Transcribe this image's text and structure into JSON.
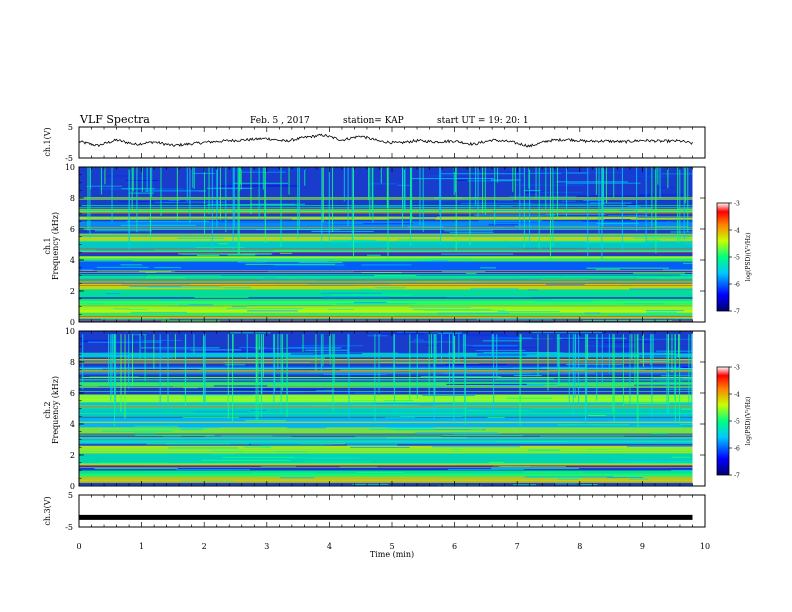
{
  "header": {
    "title": "VLF Spectra",
    "date": "Feb. 5 , 2017",
    "station": "station= KAP",
    "start": "start  UT =   19: 20: 1"
  },
  "colors": {
    "spectrogram_base": "#1a3ccc",
    "trace": "#000000"
  },
  "chart_data": [
    {
      "type": "line",
      "name": "ch1-waveform",
      "ylabel": "ch.1(V)",
      "ylim": [
        -5,
        5
      ],
      "yticks": [
        "5",
        "-5"
      ],
      "xlim": [
        0,
        10
      ],
      "series": [
        {
          "x": [
            0,
            0.3,
            0.6,
            0.9,
            1.2,
            1.5,
            1.8,
            2.1,
            2.4,
            2.7,
            3.0,
            3.3,
            3.6,
            3.9,
            4.2,
            4.5,
            4.8,
            5.1,
            5.4,
            5.7,
            6.0,
            6.3,
            6.6,
            6.9,
            7.2,
            7.5,
            7.8,
            8.1,
            8.4,
            8.7,
            9.0,
            9.3,
            9.6,
            9.8
          ],
          "values": [
            0.3,
            -1.0,
            0.8,
            -0.6,
            0.2,
            -1.0,
            -0.4,
            0.2,
            0.6,
            0.9,
            1.3,
            0.4,
            1.6,
            2.4,
            0.8,
            2.1,
            0.4,
            -0.2,
            0.6,
            0.2,
            0.5,
            -0.6,
            0.8,
            0.2,
            -1.2,
            0.6,
            1.0,
            0.4,
            0.5,
            0.2,
            0.7,
            0.4,
            0.5,
            -0.3
          ]
        }
      ]
    },
    {
      "type": "heatmap",
      "name": "ch1-spectrogram",
      "ylabel": "ch.1\nFrequency (kHz)",
      "ylim": [
        0,
        10
      ],
      "yticks": [
        "0",
        "2",
        "4",
        "6",
        "8",
        "10"
      ],
      "xlim": [
        0,
        10
      ],
      "colorbar": {
        "label": "log(PSD)(V²/Hz)",
        "ticks": [
          "-3",
          "-4",
          "-5",
          "-6",
          "-7"
        ],
        "range": [
          -7,
          -3
        ]
      }
    },
    {
      "type": "heatmap",
      "name": "ch2-spectrogram",
      "ylabel": "ch.2\nFrequency (kHz)",
      "ylim": [
        0,
        10
      ],
      "yticks": [
        "0",
        "2",
        "4",
        "6",
        "8",
        "10"
      ],
      "xlim": [
        0,
        10
      ],
      "colorbar": {
        "label": "log(PSD)(V²/Hz)",
        "ticks": [
          "-3",
          "-4",
          "-5",
          "-6",
          "-7"
        ],
        "range": [
          -7,
          -3
        ]
      }
    },
    {
      "type": "line",
      "name": "ch3-waveform",
      "ylabel": "ch.3(V)",
      "ylim": [
        -5,
        5
      ],
      "yticks": [
        "5",
        "-5"
      ],
      "xlim": [
        0,
        10
      ],
      "xlabel": "Time  (min)",
      "xticks": [
        "0",
        "1",
        "2",
        "3",
        "4",
        "5",
        "6",
        "7",
        "8",
        "9",
        "10"
      ],
      "series": [
        {
          "x": [
            0,
            9.8
          ],
          "values": [
            -2,
            -2
          ]
        }
      ]
    }
  ]
}
